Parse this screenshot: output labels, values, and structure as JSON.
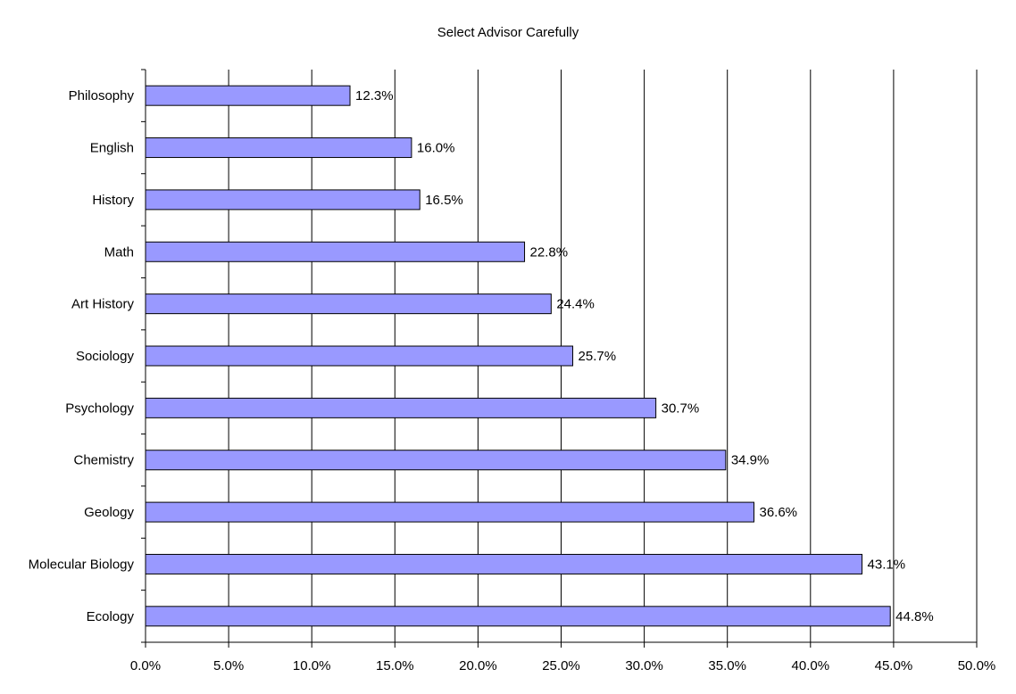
{
  "chart_data": {
    "type": "bar",
    "orientation": "horizontal",
    "title": "Select Advisor Carefully",
    "xlabel": "",
    "ylabel": "",
    "categories": [
      "Philosophy",
      "English",
      "History",
      "Math",
      "Art History",
      "Sociology",
      "Psychology",
      "Chemistry",
      "Geology",
      "Molecular Biology",
      "Ecology"
    ],
    "values": [
      12.3,
      16.0,
      16.5,
      22.8,
      24.4,
      25.7,
      30.7,
      34.9,
      36.6,
      43.1,
      44.8
    ],
    "value_labels": [
      "12.3%",
      "16.0%",
      "16.5%",
      "22.8%",
      "24.4%",
      "25.7%",
      "30.7%",
      "34.9%",
      "36.6%",
      "43.1%",
      "44.8%"
    ],
    "xlim": [
      0,
      50
    ],
    "x_ticks": [
      0,
      5,
      10,
      15,
      20,
      25,
      30,
      35,
      40,
      45,
      50
    ],
    "x_tick_labels": [
      "0.0%",
      "5.0%",
      "10.0%",
      "15.0%",
      "20.0%",
      "25.0%",
      "30.0%",
      "35.0%",
      "40.0%",
      "45.0%",
      "50.0%"
    ],
    "grid": "vertical",
    "legend": "none",
    "bar_color": "#9999ff",
    "bar_edge_color": "#000000",
    "grid_color": "#000000"
  }
}
